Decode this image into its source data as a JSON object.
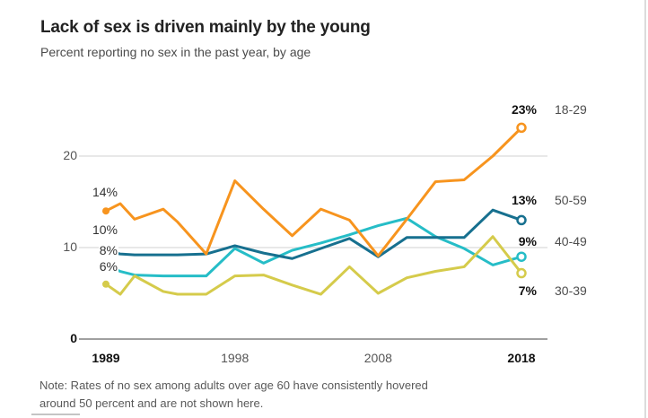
{
  "header": {
    "title": "Lack of sex is driven mainly by the young",
    "subtitle": "Percent reporting no sex in the past year, by age"
  },
  "note": "Note: Rates of no sex among adults over age 60 have consistently hovered around 50 percent and are not shown here.",
  "colors": {
    "orange": "#F7941E",
    "dark_blue": "#17708F",
    "teal": "#26BDC7",
    "yellow_green": "#D5CB4B",
    "gridline": "#d9d9d9",
    "baseline": "#a0a0a0"
  },
  "chart_data": {
    "type": "line",
    "title": "Lack of sex is driven mainly by the young",
    "subtitle": "Percent reporting no sex in the past year, by age",
    "x": [
      1989,
      1990,
      1991,
      1993,
      1994,
      1996,
      1998,
      2000,
      2002,
      2004,
      2006,
      2008,
      2010,
      2012,
      2014,
      2016,
      2018
    ],
    "xlim": [
      1989,
      2018
    ],
    "ylim": [
      0,
      27
    ],
    "grid": "horizontal",
    "xticks": [
      {
        "label": "1989",
        "year": 1989,
        "bold": true
      },
      {
        "label": "1998",
        "year": 1998,
        "bold": false
      },
      {
        "label": "2008",
        "year": 2008,
        "bold": false
      },
      {
        "label": "2018",
        "year": 2018,
        "bold": true
      }
    ],
    "yticks": [
      {
        "label": "0",
        "v": 0,
        "bold": true
      },
      {
        "label": "10",
        "v": 10,
        "bold": false
      },
      {
        "label": "20",
        "v": 20,
        "bold": false
      }
    ],
    "series": [
      {
        "name": "18-29",
        "color": "#F7941E",
        "start_dot": true,
        "start_label": "14%",
        "end_label": "23%",
        "values": [
          14,
          14.8,
          13.1,
          14.2,
          12.8,
          9.3,
          17.3,
          14.2,
          11.3,
          14.2,
          13,
          9.1,
          13.1,
          17.2,
          17.4,
          20,
          23.1
        ]
      },
      {
        "name": "50-59",
        "color": "#17708F",
        "start_dot": false,
        "start_label": "10%",
        "end_label": "13%",
        "values": [
          9.6,
          9.3,
          9.2,
          9.2,
          9.2,
          9.3,
          10.2,
          9.4,
          8.8,
          9.9,
          11,
          9,
          11.1,
          11.1,
          11.1,
          14.1,
          13
        ]
      },
      {
        "name": "40-49",
        "color": "#26BDC7",
        "start_dot": false,
        "start_label": "8%",
        "end_label": "9%",
        "values": [
          8,
          7.4,
          7,
          6.9,
          6.9,
          6.9,
          9.9,
          8.3,
          9.7,
          10.5,
          11.4,
          12.4,
          13.2,
          11.2,
          9.9,
          8.1,
          9
        ]
      },
      {
        "name": "30-39",
        "color": "#D5CB4B",
        "start_dot": true,
        "start_label": "6%",
        "end_label": "7%",
        "values": [
          6,
          4.9,
          6.9,
          5.2,
          4.9,
          4.9,
          6.9,
          7,
          5.9,
          4.9,
          7.9,
          5,
          6.7,
          7.4,
          7.9,
          11.2,
          7.2
        ]
      }
    ],
    "start_annotations": [
      {
        "text": "14%",
        "anchor_value": 15.9
      },
      {
        "text": "10%",
        "anchor_value": 11.8
      },
      {
        "text": "8%",
        "anchor_value": 9.55
      },
      {
        "text": "6%",
        "anchor_value": 7.7
      }
    ],
    "end_annotations": [
      {
        "text": "23%",
        "age": "18-29",
        "anchor_value": 24.9
      },
      {
        "text": "13%",
        "age": "50-59",
        "anchor_value": 15.0
      },
      {
        "text": "9%",
        "age": "40-49",
        "anchor_value": 10.5
      },
      {
        "text": "7%",
        "age": "30-39",
        "anchor_value": 5.1
      }
    ]
  }
}
